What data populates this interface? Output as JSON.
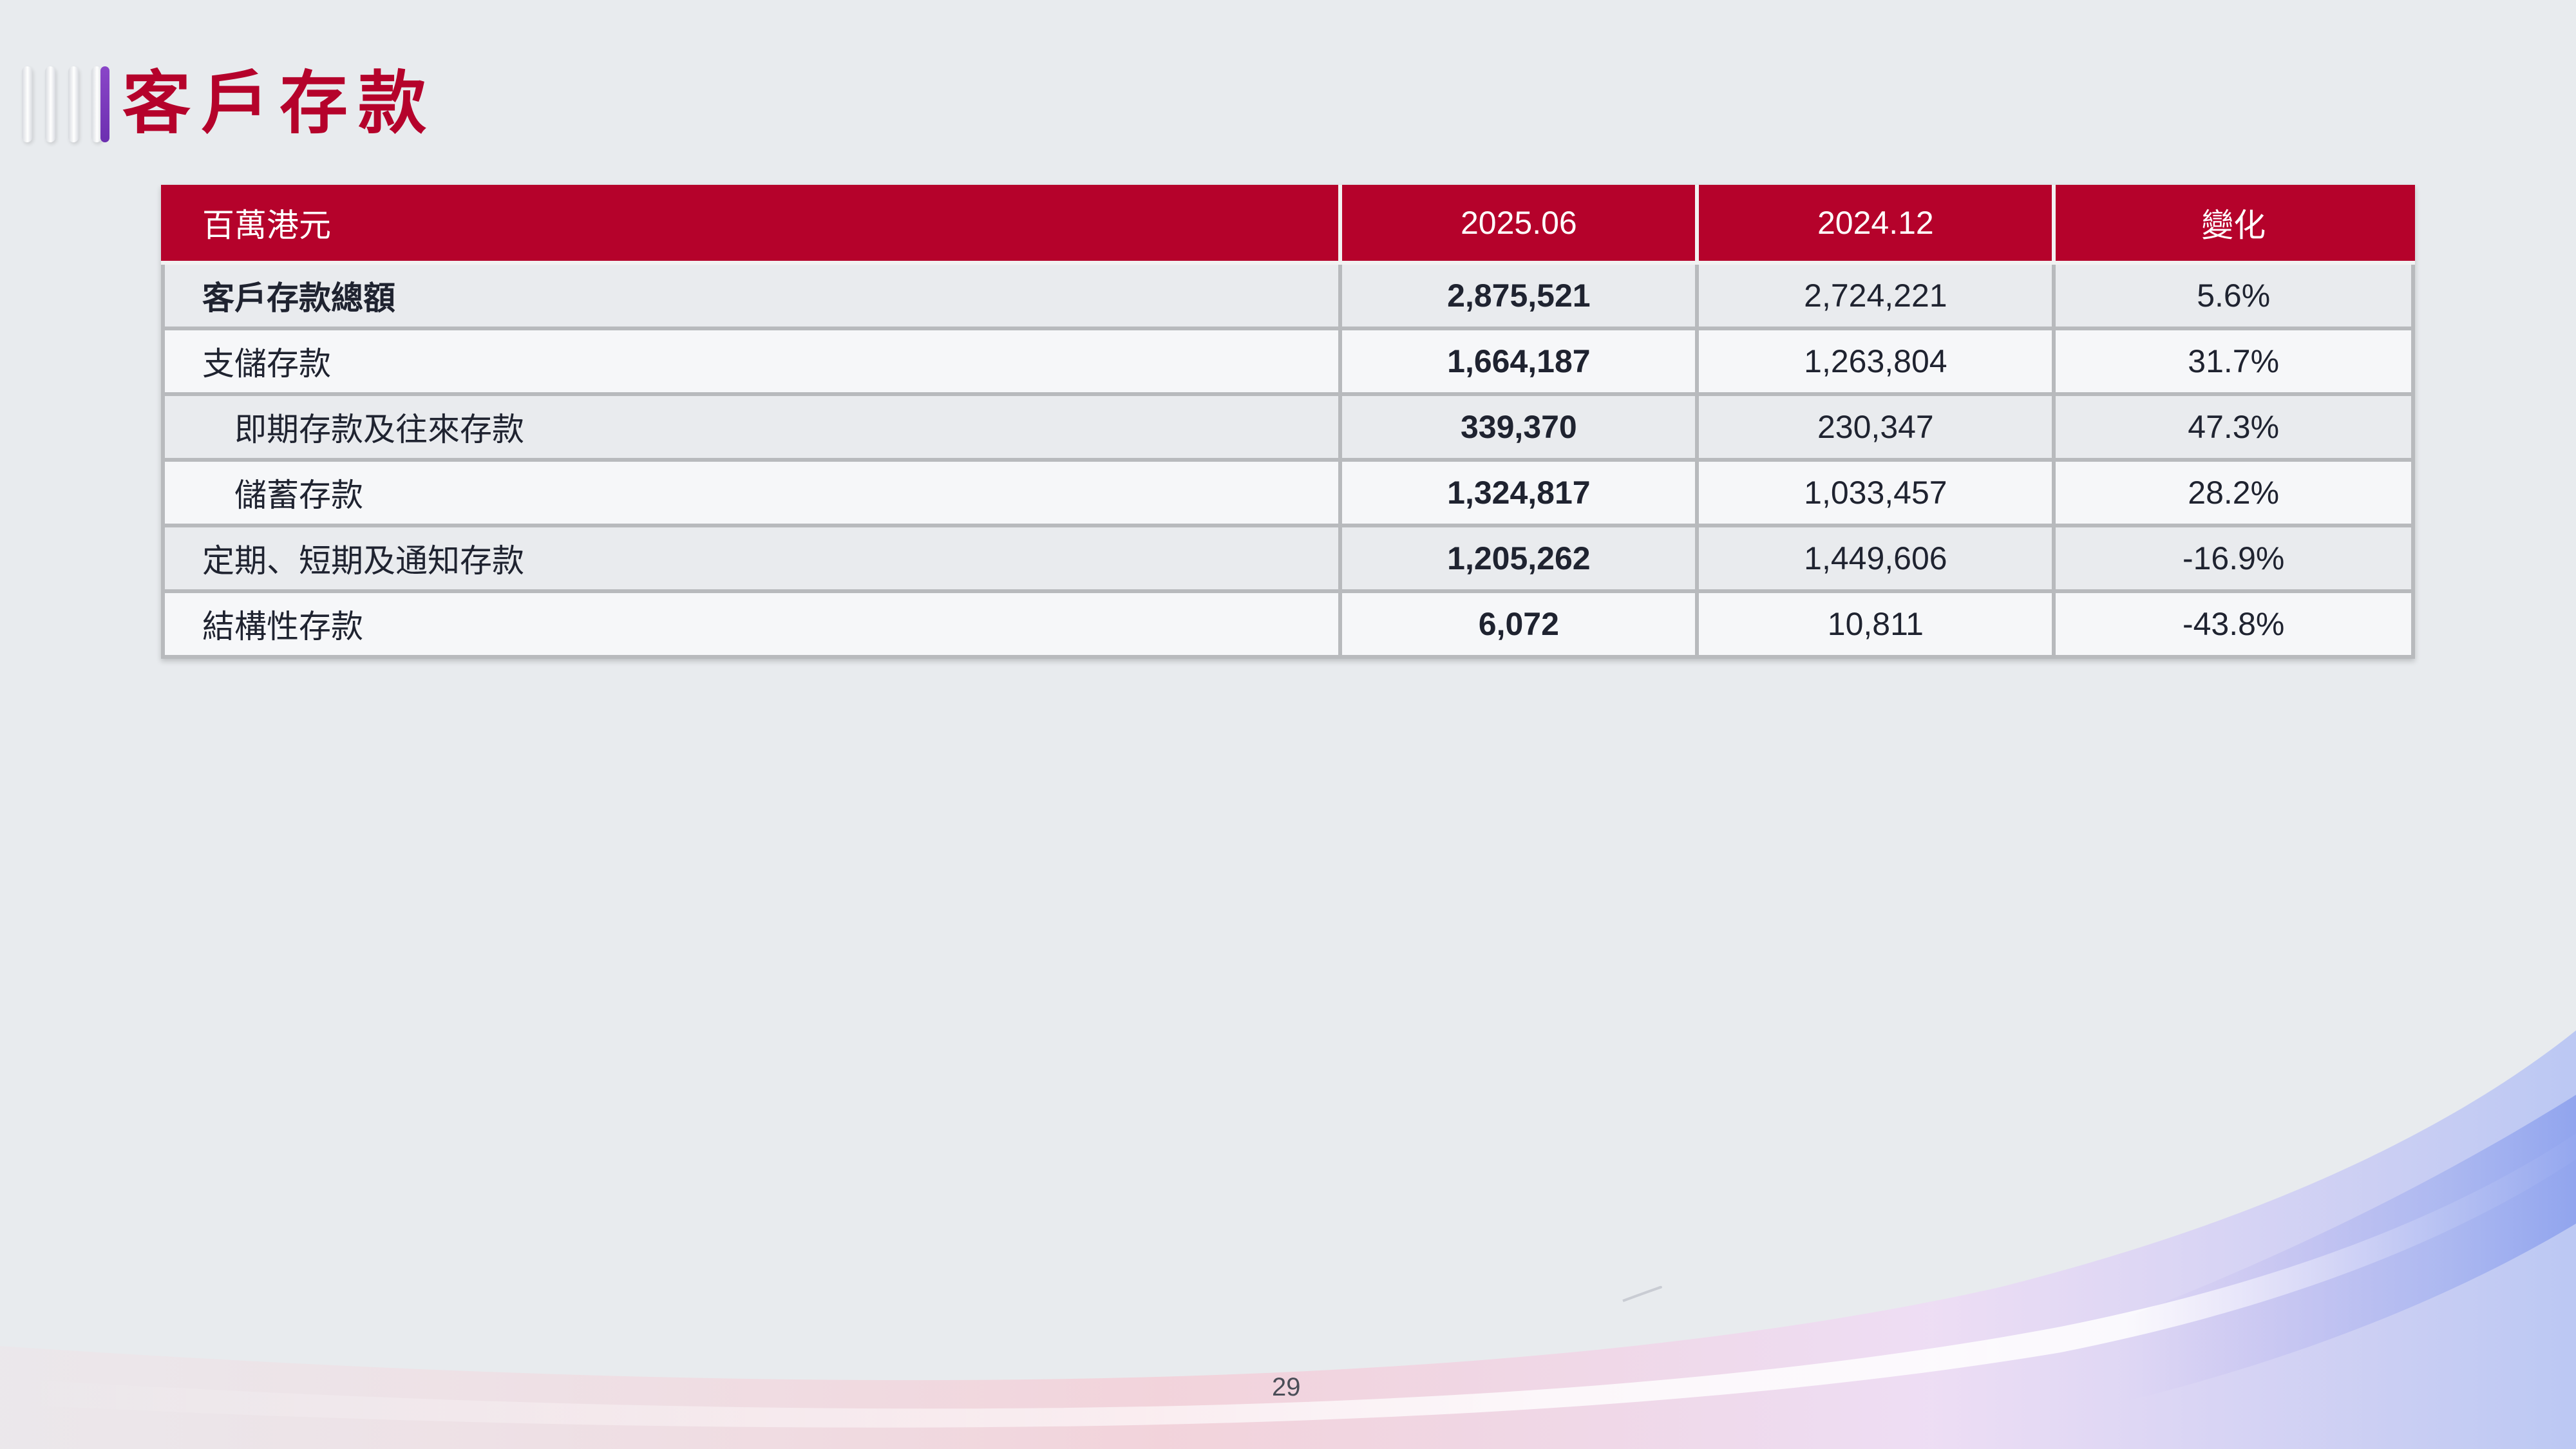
{
  "title": "客戶存款",
  "table": {
    "headers": [
      "百萬港元",
      "2025.06",
      "2024.12",
      "變化"
    ],
    "rows": [
      {
        "label": "客戶存款總額",
        "current": "2,875,521",
        "previous": "2,724,221",
        "change": "5.6%"
      },
      {
        "label": "支儲存款",
        "current": "1,664,187",
        "previous": "1,263,804",
        "change": "31.7%"
      },
      {
        "label": "即期存款及往來存款",
        "current": "339,370",
        "previous": "230,347",
        "change": "47.3%"
      },
      {
        "label": "儲蓄存款",
        "current": "1,324,817",
        "previous": "1,033,457",
        "change": "28.2%"
      },
      {
        "label": "定期、短期及通知存款",
        "current": "1,205,262",
        "previous": "1,449,606",
        "change": "-16.9%"
      },
      {
        "label": "結構性存款",
        "current": "6,072",
        "previous": "10,811",
        "change": "-43.8%"
      }
    ]
  },
  "page_number": "29",
  "colors": {
    "brand_red": "#b5022b",
    "accent_purple": "#7a3cc0",
    "background": "#e8ebee"
  }
}
